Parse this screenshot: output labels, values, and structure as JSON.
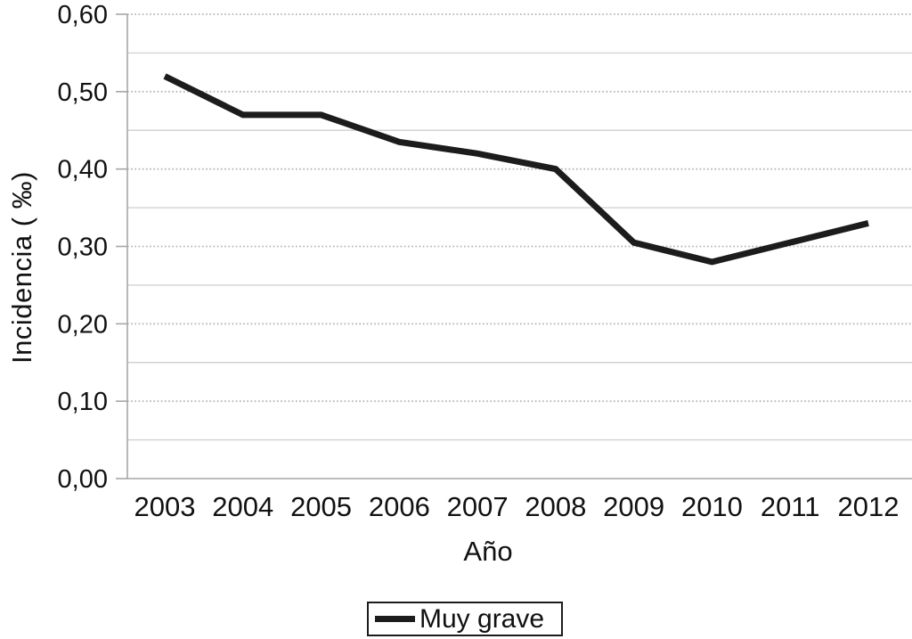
{
  "chart_data": {
    "type": "line",
    "title": "",
    "xlabel": "Año",
    "ylabel": "Incidencia ( ‰)",
    "categories": [
      "2003",
      "2004",
      "2005",
      "2006",
      "2007",
      "2008",
      "2009",
      "2010",
      "2011",
      "2012"
    ],
    "series": [
      {
        "name": "Muy grave",
        "color": "#1c1c1c",
        "values": [
          0.52,
          0.47,
          0.47,
          0.435,
          0.42,
          0.4,
          0.305,
          0.28,
          0.305,
          0.33
        ]
      }
    ],
    "ylim": [
      0,
      0.6
    ],
    "ytick_interval": 0.1,
    "minor_gridline_interval": 0.05,
    "ytick_labels": [
      "0,00",
      "0,10",
      "0,20",
      "0,30",
      "0,40",
      "0,50",
      "0,60"
    ],
    "grid": {
      "major_style": "dotted",
      "minor_style": "solid",
      "orientation": "horizontal"
    },
    "legend": {
      "position": "bottom",
      "entries": [
        "Muy grave"
      ]
    },
    "colors": {
      "line": "#1c1c1c",
      "grid_major": "#b3b3b3",
      "grid_minor": "#d2d2d2",
      "axis": "#a6a6a6",
      "text": "#111111"
    }
  }
}
